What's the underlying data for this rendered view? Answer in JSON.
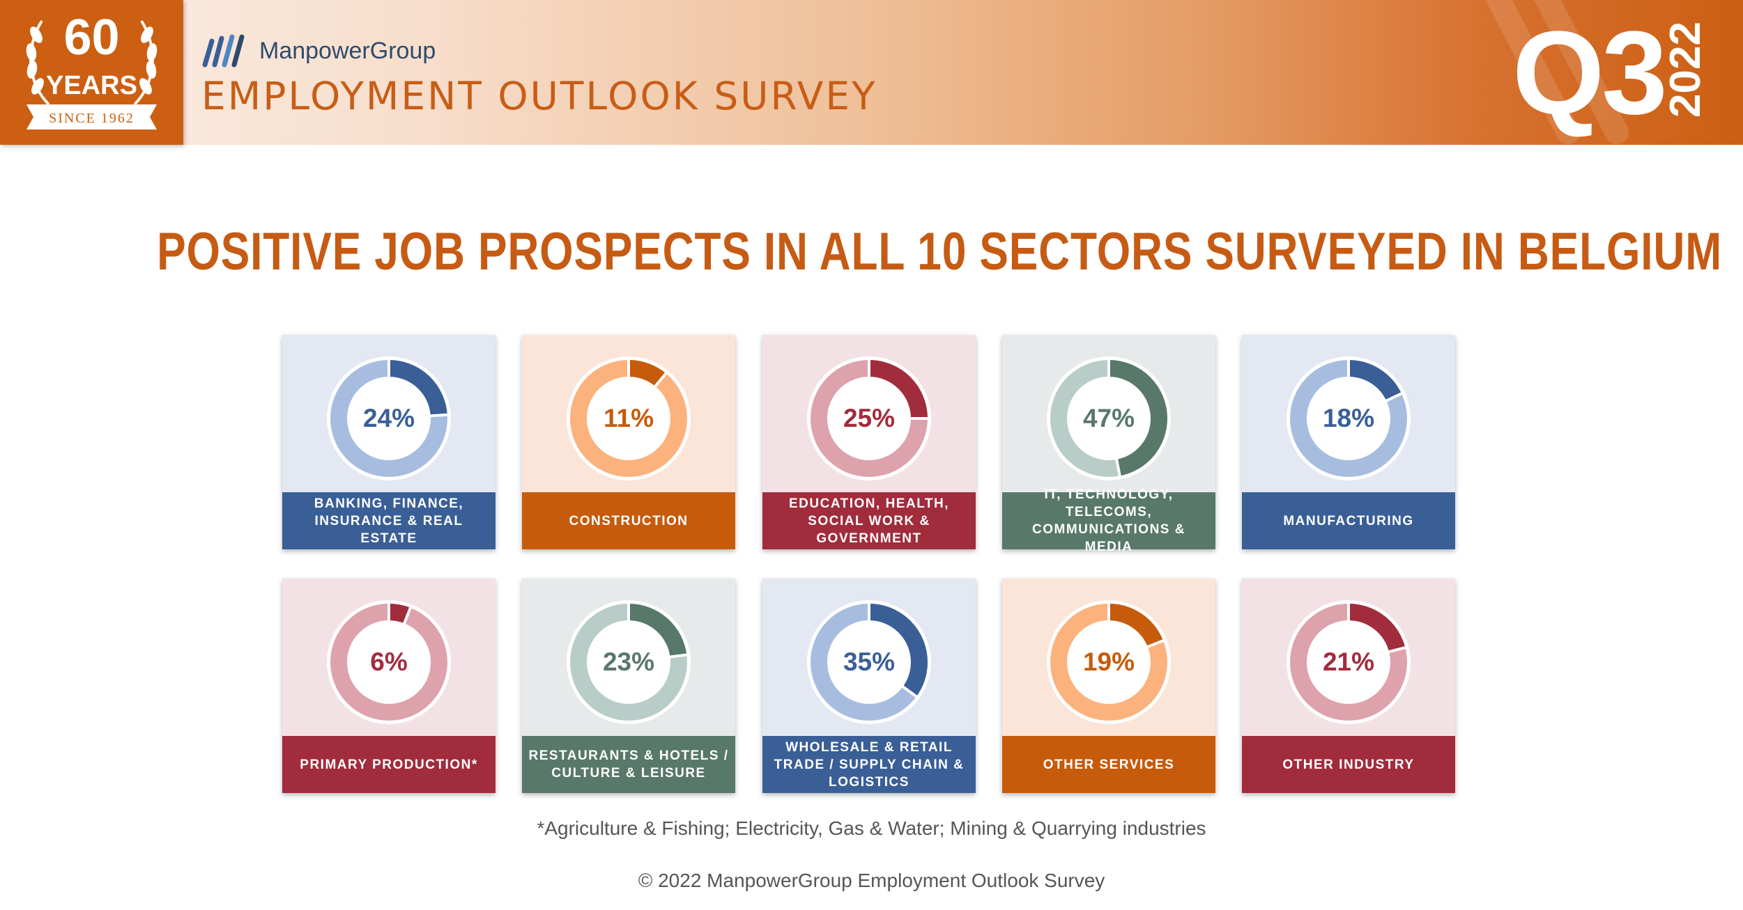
{
  "header": {
    "badge": {
      "number": "60",
      "word": "YEARS",
      "since": "SINCE 1962"
    },
    "brand": "ManpowerGroup",
    "survey_title": "EMPLOYMENT OUTLOOK SURVEY",
    "quarter": "Q3",
    "year": "2022"
  },
  "headline": "POSITIVE JOB PROSPECTS IN ALL 10 SECTORS SURVEYED IN BELGIUM",
  "colors": {
    "blue": "#3a5f97",
    "blue_light": "#a7bddf",
    "blue_bg": "#e3e8f2",
    "orange": "#c65b0c",
    "orange_light": "#fbb27d",
    "orange_bg": "#fbe5d8",
    "red": "#a12c3c",
    "red_light": "#dea2ad",
    "red_bg": "#f3e2e5",
    "green": "#58786a",
    "green_light": "#b9cdc8",
    "green_bg": "#e6eaea"
  },
  "chart_data": {
    "type": "pie",
    "title": "POSITIVE JOB PROSPECTS IN ALL 10 SECTORS SURVEYED IN BELGIUM",
    "categories": [
      "BANKING, FINANCE, INSURANCE & REAL ESTATE",
      "CONSTRUCTION",
      "EDUCATION, HEALTH, SOCIAL WORK & GOVERNMENT",
      "IT, TECHNOLOGY, TELECOMS, COMMUNICATIONS & MEDIA",
      "MANUFACTURING",
      "PRIMARY PRODUCTION*",
      "RESTAURANTS & HOTELS / CULTURE & LEISURE",
      "WHOLESALE & RETAIL TRADE / SUPPLY CHAIN & LOGISTICS",
      "OTHER SERVICES",
      "OTHER INDUSTRY"
    ],
    "values": [
      24,
      11,
      25,
      47,
      18,
      6,
      23,
      35,
      19,
      21
    ],
    "unit": "%"
  },
  "sectors": [
    {
      "value_label": "24%",
      "value": 24,
      "label_lines": [
        "BANKING, FINANCE,",
        "INSURANCE & REAL ESTATE"
      ],
      "theme": "blue"
    },
    {
      "value_label": "11%",
      "value": 11,
      "label_lines": [
        "CONSTRUCTION"
      ],
      "theme": "orange"
    },
    {
      "value_label": "25%",
      "value": 25,
      "label_lines": [
        "EDUCATION, HEALTH,",
        "SOCIAL WORK &",
        "GOVERNMENT"
      ],
      "theme": "red"
    },
    {
      "value_label": "47%",
      "value": 47,
      "label_lines": [
        "IT, TECHNOLOGY,",
        "TELECOMS,",
        "COMMUNICATIONS & MEDIA"
      ],
      "theme": "green"
    },
    {
      "value_label": "18%",
      "value": 18,
      "label_lines": [
        "MANUFACTURING"
      ],
      "theme": "blue"
    },
    {
      "value_label": "6%",
      "value": 6,
      "label_lines": [
        "PRIMARY PRODUCTION*"
      ],
      "theme": "red"
    },
    {
      "value_label": "23%",
      "value": 23,
      "label_lines": [
        "RESTAURANTS & HOTELS /",
        "CULTURE & LEISURE"
      ],
      "theme": "green"
    },
    {
      "value_label": "35%",
      "value": 35,
      "label_lines": [
        "WHOLESALE & RETAIL",
        "TRADE / SUPPLY CHAIN &",
        "LOGISTICS"
      ],
      "theme": "blue"
    },
    {
      "value_label": "19%",
      "value": 19,
      "label_lines": [
        "OTHER SERVICES"
      ],
      "theme": "orange"
    },
    {
      "value_label": "21%",
      "value": 21,
      "label_lines": [
        "OTHER INDUSTRY"
      ],
      "theme": "red"
    }
  ],
  "footnote": "*Agriculture & Fishing; Electricity, Gas & Water; Mining & Quarrying industries",
  "copyright": "© 2022 ManpowerGroup Employment Outlook Survey"
}
